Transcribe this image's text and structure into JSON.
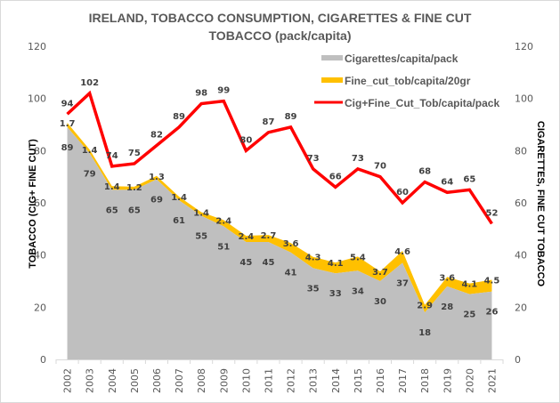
{
  "chart_data": {
    "type": "area",
    "title_line1": "IRELAND, TOBACCO CONSUMPTION, CIGARETTES & FINE CUT",
    "title_line2": "TOBACCO (pack/capita)",
    "ylabel_left": "TOBACCO (CIG+ FINE CUT)",
    "ylabel_right": "CIGARETTES,  FINE CUT TOBACCO",
    "xlabel": "",
    "ylim": [
      0,
      120
    ],
    "yticks": [
      0,
      20,
      40,
      60,
      80,
      100,
      120
    ],
    "categories": [
      "2002",
      "2003",
      "2004",
      "2005",
      "2006",
      "2007",
      "2008",
      "2009",
      "2010",
      "2011",
      "2012",
      "2013",
      "2014",
      "2015",
      "2016",
      "2017",
      "2018",
      "2019",
      "2020",
      "2021"
    ],
    "legend_position": "top-right",
    "series": [
      {
        "name": "Cigarettes/capita/pack",
        "type": "area",
        "color": "#bfbfbf",
        "values": [
          89,
          79,
          65,
          65,
          69,
          61,
          55,
          51,
          45,
          45,
          41,
          35,
          33,
          34,
          30,
          37,
          18,
          28,
          25,
          26
        ]
      },
      {
        "name": "Fine_cut_tob/capita/20gr",
        "type": "stacked-area",
        "color": "#ffc000",
        "values": [
          1.7,
          1.4,
          1.4,
          1.2,
          1.3,
          1.4,
          1.4,
          2.4,
          2.4,
          2.7,
          3.6,
          4.3,
          4.1,
          5.4,
          3.7,
          4.6,
          2.9,
          3.6,
          4.1,
          4.5
        ]
      },
      {
        "name": "Cig+Fine_Cut_Tob/capita/pack",
        "type": "line",
        "color": "#ff0000",
        "values": [
          94,
          102,
          74,
          75,
          82,
          89,
          98,
          99,
          80,
          87,
          89,
          73,
          66,
          73,
          70,
          60,
          68,
          64,
          65,
          52
        ]
      }
    ]
  }
}
